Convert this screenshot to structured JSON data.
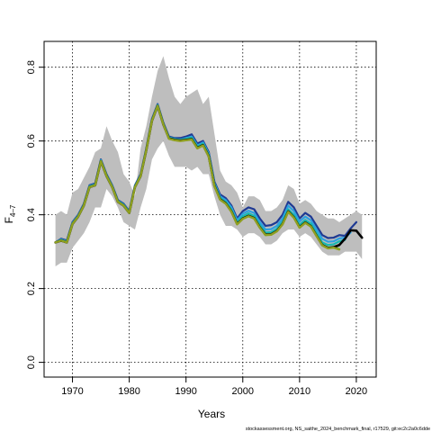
{
  "chart_data": {
    "type": "line",
    "title": "",
    "xlabel": "Years",
    "ylabel_main": "F",
    "ylabel_sub": "4–7",
    "xlim": [
      1965,
      2023.5
    ],
    "ylim": [
      -0.04,
      0.87
    ],
    "x_ticks": [
      "1970",
      "1980",
      "1990",
      "2000",
      "2010",
      "2020"
    ],
    "y_ticks": [
      "0.0",
      "0.2",
      "0.4",
      "0.6",
      "0.8"
    ],
    "grid": true,
    "footer": "stockassessment.org, NS_saithe_2024_benchmark_final, r17529, git:ec2c2a0c6dde",
    "colors": {
      "band": "#bebebe",
      "retro_1": "#1f3a93",
      "retro_2": "#2ca0e0",
      "retro_3": "#17b8b0",
      "retro_4": "#4fae4f",
      "main": "#000000",
      "final": "#8fa020"
    },
    "band": {
      "x": [
        1967,
        1968,
        1969,
        1970,
        1971,
        1972,
        1973,
        1974,
        1975,
        1976,
        1977,
        1978,
        1979,
        1980,
        1981,
        1982,
        1983,
        1984,
        1985,
        1986,
        1987,
        1988,
        1989,
        1990,
        1991,
        1992,
        1993,
        1994,
        1995,
        1996,
        1997,
        1998,
        1999,
        2000,
        2001,
        2002,
        2003,
        2004,
        2005,
        2006,
        2007,
        2008,
        2009,
        2010,
        2011,
        2012,
        2013,
        2014,
        2015,
        2016,
        2017,
        2018,
        2019,
        2020,
        2021
      ],
      "upper": [
        0.4,
        0.41,
        0.4,
        0.46,
        0.47,
        0.5,
        0.53,
        0.57,
        0.58,
        0.64,
        0.6,
        0.57,
        0.51,
        0.49,
        0.45,
        0.58,
        0.64,
        0.72,
        0.79,
        0.83,
        0.77,
        0.72,
        0.7,
        0.72,
        0.73,
        0.74,
        0.7,
        0.72,
        0.62,
        0.52,
        0.49,
        0.48,
        0.46,
        0.42,
        0.45,
        0.45,
        0.44,
        0.41,
        0.41,
        0.42,
        0.44,
        0.48,
        0.47,
        0.43,
        0.44,
        0.43,
        0.41,
        0.4,
        0.39,
        0.39,
        0.38,
        0.39,
        0.4,
        0.41,
        0.4
      ],
      "lower": [
        0.26,
        0.27,
        0.27,
        0.31,
        0.33,
        0.35,
        0.38,
        0.42,
        0.42,
        0.47,
        0.45,
        0.42,
        0.38,
        0.37,
        0.36,
        0.42,
        0.47,
        0.55,
        0.58,
        0.6,
        0.56,
        0.53,
        0.53,
        0.53,
        0.52,
        0.53,
        0.51,
        0.51,
        0.45,
        0.4,
        0.37,
        0.37,
        0.36,
        0.34,
        0.35,
        0.35,
        0.34,
        0.32,
        0.32,
        0.33,
        0.35,
        0.36,
        0.36,
        0.34,
        0.35,
        0.34,
        0.32,
        0.3,
        0.29,
        0.29,
        0.29,
        0.3,
        0.3,
        0.3,
        0.28
      ]
    },
    "series": [
      {
        "color_key": "retro_1",
        "x": [
          1967,
          1968,
          1969,
          1970,
          1971,
          1972,
          1973,
          1974,
          1975,
          1976,
          1977,
          1978,
          1979,
          1980,
          1981,
          1982,
          1983,
          1984,
          1985,
          1986,
          1987,
          1988,
          1989,
          1990,
          1991,
          1992,
          1993,
          1994,
          1995,
          1996,
          1997,
          1998,
          1999,
          2000,
          2001,
          2002,
          2003,
          2004,
          2005,
          2006,
          2007,
          2008,
          2009,
          2010,
          2011,
          2012,
          2013,
          2014,
          2015,
          2016,
          2017,
          2018,
          2019,
          2020
        ],
        "y": [
          0.325,
          0.335,
          0.33,
          0.38,
          0.4,
          0.43,
          0.48,
          0.485,
          0.55,
          0.51,
          0.48,
          0.44,
          0.43,
          0.41,
          0.48,
          0.51,
          0.58,
          0.66,
          0.7,
          0.65,
          0.612,
          0.608,
          0.608,
          0.612,
          0.618,
          0.593,
          0.6,
          0.57,
          0.49,
          0.455,
          0.445,
          0.425,
          0.39,
          0.41,
          0.42,
          0.415,
          0.39,
          0.37,
          0.372,
          0.38,
          0.4,
          0.435,
          0.42,
          0.39,
          0.405,
          0.395,
          0.37,
          0.345,
          0.337,
          0.338,
          0.345,
          0.343,
          0.363,
          0.38
        ]
      },
      {
        "color_key": "retro_2",
        "x": [
          1967,
          1968,
          1969,
          1970,
          1971,
          1972,
          1973,
          1974,
          1975,
          1976,
          1977,
          1978,
          1979,
          1980,
          1981,
          1982,
          1983,
          1984,
          1985,
          1986,
          1987,
          1988,
          1989,
          1990,
          1991,
          1992,
          1993,
          1994,
          1995,
          1996,
          1997,
          1998,
          1999,
          2000,
          2001,
          2002,
          2003,
          2004,
          2005,
          2006,
          2007,
          2008,
          2009,
          2010,
          2011,
          2012,
          2013,
          2014,
          2015,
          2016,
          2017,
          2018,
          2019
        ],
        "y": [
          0.325,
          0.333,
          0.328,
          0.378,
          0.398,
          0.428,
          0.478,
          0.483,
          0.548,
          0.508,
          0.478,
          0.438,
          0.428,
          0.408,
          0.478,
          0.508,
          0.578,
          0.658,
          0.698,
          0.648,
          0.61,
          0.606,
          0.604,
          0.608,
          0.612,
          0.588,
          0.596,
          0.566,
          0.486,
          0.45,
          0.44,
          0.42,
          0.385,
          0.403,
          0.411,
          0.405,
          0.38,
          0.36,
          0.361,
          0.37,
          0.39,
          0.425,
          0.41,
          0.382,
          0.395,
          0.385,
          0.36,
          0.335,
          0.327,
          0.328,
          0.336,
          0.338,
          0.352
        ]
      },
      {
        "color_key": "retro_3",
        "x": [
          1967,
          1968,
          1969,
          1970,
          1971,
          1972,
          1973,
          1974,
          1975,
          1976,
          1977,
          1978,
          1979,
          1980,
          1981,
          1982,
          1983,
          1984,
          1985,
          1986,
          1987,
          1988,
          1989,
          1990,
          1991,
          1992,
          1993,
          1994,
          1995,
          1996,
          1997,
          1998,
          1999,
          2000,
          2001,
          2002,
          2003,
          2004,
          2005,
          2006,
          2007,
          2008,
          2009,
          2010,
          2011,
          2012,
          2013,
          2014,
          2015,
          2016,
          2017,
          2018
        ],
        "y": [
          0.325,
          0.332,
          0.327,
          0.377,
          0.397,
          0.427,
          0.477,
          0.482,
          0.547,
          0.507,
          0.477,
          0.437,
          0.427,
          0.407,
          0.477,
          0.507,
          0.577,
          0.657,
          0.697,
          0.647,
          0.609,
          0.605,
          0.603,
          0.606,
          0.609,
          0.585,
          0.593,
          0.563,
          0.483,
          0.446,
          0.435,
          0.414,
          0.38,
          0.396,
          0.404,
          0.397,
          0.372,
          0.352,
          0.353,
          0.362,
          0.381,
          0.415,
          0.4,
          0.373,
          0.386,
          0.376,
          0.35,
          0.325,
          0.318,
          0.32,
          0.328,
          0.332
        ]
      },
      {
        "color_key": "retro_4",
        "x": [
          1967,
          1968,
          1969,
          1970,
          1971,
          1972,
          1973,
          1974,
          1975,
          1976,
          1977,
          1978,
          1979,
          1980,
          1981,
          1982,
          1983,
          1984,
          1985,
          1986,
          1987,
          1988,
          1989,
          1990,
          1991,
          1992,
          1993,
          1994,
          1995,
          1996,
          1997,
          1998,
          1999,
          2000,
          2001,
          2002,
          2003,
          2004,
          2005,
          2006,
          2007,
          2008,
          2009,
          2010,
          2011,
          2012,
          2013,
          2014,
          2015,
          2016,
          2017
        ],
        "y": [
          0.325,
          0.331,
          0.326,
          0.376,
          0.396,
          0.426,
          0.476,
          0.481,
          0.546,
          0.506,
          0.476,
          0.436,
          0.426,
          0.406,
          0.476,
          0.506,
          0.576,
          0.656,
          0.696,
          0.646,
          0.608,
          0.604,
          0.602,
          0.604,
          0.606,
          0.582,
          0.59,
          0.56,
          0.48,
          0.443,
          0.432,
          0.41,
          0.376,
          0.391,
          0.398,
          0.392,
          0.367,
          0.347,
          0.348,
          0.357,
          0.376,
          0.41,
          0.394,
          0.367,
          0.38,
          0.37,
          0.344,
          0.319,
          0.311,
          0.313,
          0.307
        ]
      },
      {
        "color_key": "main",
        "x": [
          1967,
          1968,
          1969,
          1970,
          1971,
          1972,
          1973,
          1974,
          1975,
          1976,
          1977,
          1978,
          1979,
          1980,
          1981,
          1982,
          1983,
          1984,
          1985,
          1986,
          1987,
          1988,
          1989,
          1990,
          1991,
          1992,
          1993,
          1994,
          1995,
          1996,
          1997,
          1998,
          1999,
          2000,
          2001,
          2002,
          2003,
          2004,
          2005,
          2006,
          2007,
          2008,
          2009,
          2010,
          2011,
          2012,
          2013,
          2014,
          2015,
          2016,
          2017,
          2018,
          2019,
          2020,
          2021
        ],
        "y": [
          0.325,
          0.33,
          0.325,
          0.375,
          0.395,
          0.425,
          0.475,
          0.48,
          0.545,
          0.505,
          0.475,
          0.435,
          0.425,
          0.405,
          0.475,
          0.505,
          0.575,
          0.655,
          0.695,
          0.645,
          0.607,
          0.603,
          0.601,
          0.603,
          0.605,
          0.581,
          0.589,
          0.559,
          0.479,
          0.442,
          0.431,
          0.409,
          0.375,
          0.39,
          0.397,
          0.391,
          0.366,
          0.346,
          0.347,
          0.356,
          0.375,
          0.409,
          0.393,
          0.366,
          0.379,
          0.369,
          0.343,
          0.318,
          0.31,
          0.312,
          0.318,
          0.335,
          0.358,
          0.357,
          0.338
        ]
      },
      {
        "color_key": "final",
        "x": [
          1967,
          1968,
          1969,
          1970,
          1971,
          1972,
          1973,
          1974,
          1975,
          1976,
          1977,
          1978,
          1979,
          1980,
          1981,
          1982,
          1983,
          1984,
          1985,
          1986,
          1987,
          1988,
          1989,
          1990,
          1991,
          1992,
          1993,
          1994,
          1995,
          1996,
          1997,
          1998,
          1999,
          2000,
          2001,
          2002,
          2003,
          2004,
          2005,
          2006,
          2007,
          2008,
          2009,
          2010,
          2011,
          2012,
          2013,
          2014,
          2015,
          2016,
          2017
        ],
        "y": [
          0.325,
          0.33,
          0.325,
          0.375,
          0.395,
          0.425,
          0.475,
          0.48,
          0.545,
          0.505,
          0.475,
          0.435,
          0.425,
          0.405,
          0.475,
          0.505,
          0.575,
          0.655,
          0.695,
          0.645,
          0.606,
          0.602,
          0.6,
          0.602,
          0.604,
          0.58,
          0.588,
          0.558,
          0.478,
          0.441,
          0.43,
          0.408,
          0.374,
          0.389,
          0.396,
          0.39,
          0.365,
          0.345,
          0.346,
          0.355,
          0.374,
          0.408,
          0.392,
          0.365,
          0.378,
          0.368,
          0.342,
          0.317,
          0.309,
          0.311,
          0.306
        ]
      }
    ]
  }
}
